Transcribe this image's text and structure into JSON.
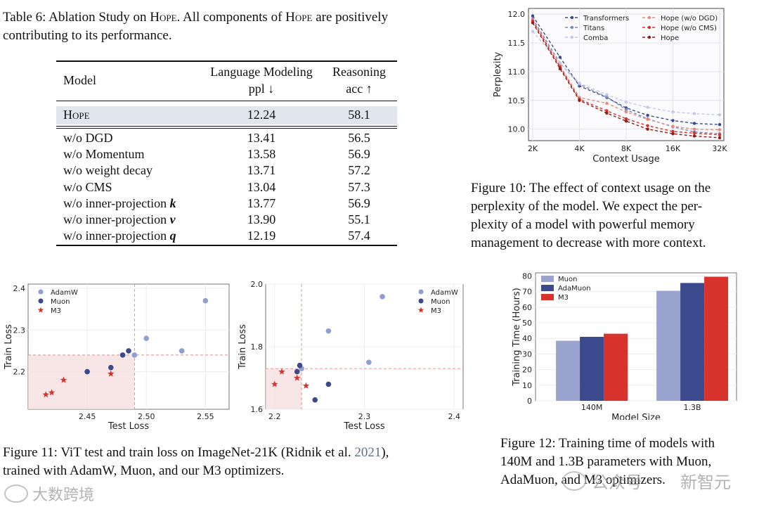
{
  "table6": {
    "caption_prefix": "Table 6: Ablation Study on ",
    "caption_hope1": "Hope",
    "caption_mid": ". All components of ",
    "caption_hope2": "Hope",
    "caption_suffix": " are positively",
    "caption_line2": "contributing to its performance.",
    "header_model": "Model",
    "header_lm_line1": "Language Modeling",
    "header_lm_line2": "ppl ↓",
    "header_reason_line1": "Reasoning",
    "header_reason_line2": "acc ↑",
    "hope_row": {
      "model": "Hope",
      "ppl": "12.24",
      "acc": "58.1"
    },
    "rows": [
      {
        "model": "w/o DGD",
        "var": "",
        "ppl": "13.41",
        "acc": "56.5"
      },
      {
        "model": "w/o Momentum",
        "var": "",
        "ppl": "13.58",
        "acc": "56.9"
      },
      {
        "model": "w/o weight decay",
        "var": "",
        "ppl": "13.71",
        "acc": "57.2"
      },
      {
        "model": "w/o CMS",
        "var": "",
        "ppl": "13.04",
        "acc": "57.3"
      },
      {
        "model": "w/o inner-projection ",
        "var": "k",
        "ppl": "13.77",
        "acc": "56.9"
      },
      {
        "model": "w/o inner-projection ",
        "var": "v",
        "ppl": "13.90",
        "acc": "55.1"
      },
      {
        "model": "w/o inner-projection ",
        "var": "q",
        "ppl": "12.19",
        "acc": "57.4"
      }
    ]
  },
  "figure10": {
    "caption_lines": [
      "Figure 10: The effect of context usage on the",
      "perplexity of the model. We expect the per-",
      "plexity of a model with powerful memory",
      "management to decrease with more context."
    ]
  },
  "figure11": {
    "caption_line1_a": "Figure 11: ViT test and train loss on ImageNet-21K (Ridnik et al. ",
    "caption_year": "2021",
    "caption_line1_b": "),",
    "caption_line2": "trained with AdamW, Muon, and our M3 optimizers."
  },
  "figure12": {
    "caption_lines": [
      "Figure 12: Training time of models with",
      "140M and 1.3B parameters with Muon,",
      "AdaMuon, and M3 optimizers."
    ]
  },
  "watermarks": {
    "left": "大数跨境",
    "right_a": "公众号",
    "right_b": "新智元"
  },
  "colors": {
    "light_blue": "#8f9fcf",
    "dark_blue": "#3b4a8c",
    "red": "#d8322c",
    "grid": "#e9e9ee",
    "highlight": "#e1e5ee"
  },
  "chart_data": [
    {
      "id": "fig10",
      "type": "line",
      "title": "",
      "xlabel": "Context Usage",
      "ylabel": "Perplexity",
      "x": [
        2,
        3,
        4,
        6,
        8,
        11,
        16,
        22,
        32
      ],
      "x_tick_labels": [
        "2K",
        "4K",
        "8K",
        "16K",
        "32K"
      ],
      "x_tick_values": [
        2,
        4,
        8,
        16,
        32
      ],
      "xscale": "log2",
      "ylim": [
        9.8,
        12.1
      ],
      "y_ticks": [
        10.0,
        10.5,
        11.0,
        11.5,
        12.0
      ],
      "grid": true,
      "legend_position": "top-right",
      "series": [
        {
          "name": "Transformers",
          "color": "#3b4a8c",
          "values": [
            11.97,
            11.25,
            10.75,
            10.55,
            10.37,
            10.24,
            10.15,
            10.1,
            10.08
          ]
        },
        {
          "name": "Titans",
          "color": "#7d88c0",
          "values": [
            11.92,
            11.15,
            10.78,
            10.56,
            10.34,
            10.18,
            10.04,
            9.95,
            9.92
          ]
        },
        {
          "name": "Comba",
          "color": "#c3c9e6",
          "values": [
            11.7,
            11.15,
            10.8,
            10.6,
            10.47,
            10.38,
            10.3,
            10.27,
            10.25
          ]
        },
        {
          "name": "Hope (w/o DGD)",
          "color": "#e58b80",
          "values": [
            11.9,
            11.1,
            10.55,
            10.45,
            10.3,
            10.17,
            10.05,
            10.0,
            9.99
          ]
        },
        {
          "name": "Hope (w/o CMS)",
          "color": "#d8322c",
          "values": [
            11.88,
            11.08,
            10.52,
            10.32,
            10.18,
            10.06,
            9.96,
            9.93,
            9.9
          ]
        },
        {
          "name": "Hope",
          "color": "#8e1f1a",
          "values": [
            11.85,
            11.05,
            10.5,
            10.28,
            10.14,
            10.0,
            9.92,
            9.88,
            9.85
          ]
        }
      ]
    },
    {
      "id": "fig11a",
      "type": "scatter",
      "xlabel": "Test Loss",
      "ylabel": "Train Loss",
      "xlim": [
        2.4,
        2.57
      ],
      "ylim": [
        2.11,
        2.41
      ],
      "x_ticks": [
        2.45,
        2.5,
        2.55
      ],
      "y_ticks": [
        2.2,
        2.3,
        2.4
      ],
      "grid": true,
      "legend_position": "top-left",
      "reference": {
        "x": 2.49,
        "y": 2.24
      },
      "series": [
        {
          "name": "AdamW",
          "marker": "circle",
          "color": "#8f9fcf",
          "points": [
            [
              2.55,
              2.37
            ],
            [
              2.5,
              2.28
            ],
            [
              2.53,
              2.25
            ],
            [
              2.49,
              2.24
            ]
          ]
        },
        {
          "name": "Muon",
          "marker": "circle",
          "color": "#3b4a8c",
          "points": [
            [
              2.45,
              2.2
            ],
            [
              2.47,
              2.21
            ],
            [
              2.48,
              2.24
            ],
            [
              2.485,
              2.25
            ]
          ]
        },
        {
          "name": "M3",
          "marker": "star",
          "color": "#d8322c",
          "points": [
            [
              2.415,
              2.145
            ],
            [
              2.42,
              2.15
            ],
            [
              2.43,
              2.18
            ],
            [
              2.47,
              2.195
            ]
          ]
        }
      ]
    },
    {
      "id": "fig11b",
      "type": "scatter",
      "xlabel": "Test Loss",
      "ylabel": "Train Loss",
      "xlim": [
        2.19,
        2.41
      ],
      "ylim": [
        1.6,
        2.0
      ],
      "x_ticks": [
        2.2,
        2.3,
        2.4
      ],
      "y_ticks": [
        1.6,
        1.8,
        2.0
      ],
      "grid": true,
      "legend_position": "top-right",
      "reference": {
        "x": 2.23,
        "y": 1.73
      },
      "series": [
        {
          "name": "AdamW",
          "marker": "circle",
          "color": "#8f9fcf",
          "points": [
            [
              2.32,
              1.96
            ],
            [
              2.26,
              1.85
            ],
            [
              2.305,
              1.75
            ],
            [
              2.23,
              1.73
            ]
          ]
        },
        {
          "name": "Muon",
          "marker": "circle",
          "color": "#3b4a8c",
          "points": [
            [
              2.228,
              1.74
            ],
            [
              2.225,
              1.72
            ],
            [
              2.26,
              1.68
            ],
            [
              2.245,
              1.63
            ]
          ]
        },
        {
          "name": "M3",
          "marker": "star",
          "color": "#d8322c",
          "points": [
            [
              2.2,
              1.68
            ],
            [
              2.208,
              1.72
            ],
            [
              2.225,
              1.7
            ],
            [
              2.235,
              1.675
            ]
          ]
        }
      ]
    },
    {
      "id": "fig12",
      "type": "bar",
      "xlabel": "Model Size",
      "ylabel": "Training Time (Hours)",
      "categories": [
        "140M",
        "1.3B"
      ],
      "ylim": [
        0,
        82
      ],
      "y_ticks": [
        0,
        10,
        20,
        30,
        40,
        50,
        60,
        70,
        80
      ],
      "grid": true,
      "legend_position": "top-left",
      "series": [
        {
          "name": "Muon",
          "color": "#9aa4cf",
          "values": [
            38.5,
            70.5
          ]
        },
        {
          "name": "AdaMuon",
          "color": "#3b4a8c",
          "values": [
            41.0,
            75.5
          ]
        },
        {
          "name": "M3",
          "color": "#d8322c",
          "values": [
            43.0,
            79.5
          ]
        }
      ]
    }
  ]
}
